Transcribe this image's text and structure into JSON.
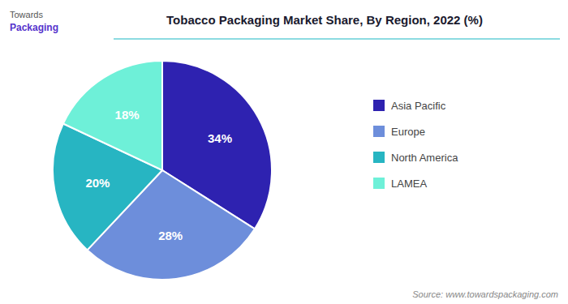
{
  "chart_data": {
    "type": "pie",
    "title": "Tobacco Packaging Market Share, By Region, 2022 (%)",
    "categories": [
      "Asia Pacific",
      "Europe",
      "North America",
      "LAMEA"
    ],
    "values": [
      34,
      28,
      20,
      18
    ],
    "value_labels": [
      "34%",
      "28%",
      "20%",
      "18%"
    ],
    "colors": [
      "#2e22b0",
      "#6d8edb",
      "#27b5c2",
      "#6ef0d8"
    ],
    "data_labels": true,
    "legend": "right",
    "annotations": [
      "Source: www.towardspackaging.com",
      "Towards",
      "Packaging"
    ]
  }
}
